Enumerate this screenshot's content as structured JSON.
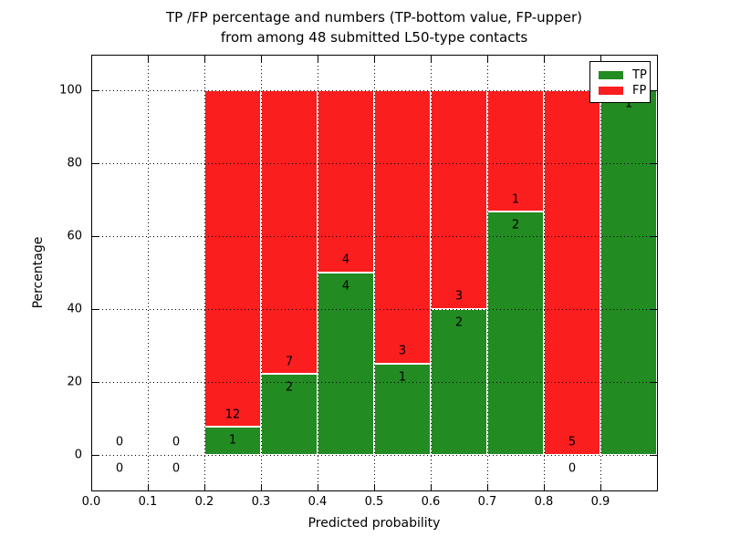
{
  "figure": {
    "title_line1": "TP /FP percentage and numbers (TP-bottom value, FP-upper)",
    "title_line2": "from among 48 submitted L50-type contacts",
    "background_color": "#ffffff",
    "text_color": "#000000"
  },
  "chart_data": {
    "type": "bar",
    "stacked": true,
    "title": "TP /FP percentage and numbers (TP-bottom value, FP-upper) from among 48 submitted L50-type contacts",
    "xlabel": "Predicted probability",
    "ylabel": "Percentage",
    "total_contacts": 48,
    "xlim": [
      0.0,
      1.0
    ],
    "ylim": [
      -9.75,
      109.75
    ],
    "grid": "dotted",
    "grid_on": true,
    "legend_position": "upper right",
    "legend": [
      {
        "label": "TP",
        "color": "#228b22"
      },
      {
        "label": "FP",
        "color": "#fa1e1e"
      }
    ],
    "colors": {
      "tp": "#228b22",
      "fp": "#fa1e1e",
      "bar_edge": "#ffffff",
      "axis": "#000000"
    },
    "yticks": [
      0,
      20,
      40,
      60,
      80,
      100
    ],
    "ytick_labels": [
      "0",
      "20",
      "40",
      "60",
      "80",
      "100"
    ],
    "xticks": [
      0.0,
      0.1,
      0.2,
      0.3,
      0.4,
      0.5,
      0.6,
      0.7,
      0.8,
      0.9
    ],
    "xtick_labels": [
      "0.0",
      "0.1",
      "0.2",
      "0.3",
      "0.4",
      "0.5",
      "0.6",
      "0.7",
      "0.8",
      "0.9"
    ],
    "xgrid_lines": [
      0.1,
      0.2,
      0.3,
      0.4,
      0.5,
      0.6,
      0.7,
      0.8,
      0.9
    ],
    "bins": [
      {
        "x0": 0.0,
        "x1": 0.1,
        "tp": 0,
        "fp": 0,
        "tp_pct": 0,
        "has_bar": false,
        "tp_label": "0",
        "fp_label": "0"
      },
      {
        "x0": 0.1,
        "x1": 0.2,
        "tp": 0,
        "fp": 0,
        "tp_pct": 0,
        "has_bar": false,
        "tp_label": "0",
        "fp_label": "0"
      },
      {
        "x0": 0.2,
        "x1": 0.3,
        "tp": 1,
        "fp": 12,
        "tp_pct": 7.69,
        "has_bar": true,
        "tp_label": "1",
        "fp_label": "12"
      },
      {
        "x0": 0.3,
        "x1": 0.4,
        "tp": 2,
        "fp": 7,
        "tp_pct": 22.22,
        "has_bar": true,
        "tp_label": "2",
        "fp_label": "7"
      },
      {
        "x0": 0.4,
        "x1": 0.5,
        "tp": 4,
        "fp": 4,
        "tp_pct": 50,
        "has_bar": true,
        "tp_label": "4",
        "fp_label": "4"
      },
      {
        "x0": 0.5,
        "x1": 0.6,
        "tp": 1,
        "fp": 3,
        "tp_pct": 25,
        "has_bar": true,
        "tp_label": "1",
        "fp_label": "3"
      },
      {
        "x0": 0.6,
        "x1": 0.7,
        "tp": 2,
        "fp": 3,
        "tp_pct": 40,
        "has_bar": true,
        "tp_label": "2",
        "fp_label": "3"
      },
      {
        "x0": 0.7,
        "x1": 0.8,
        "tp": 2,
        "fp": 1,
        "tp_pct": 66.67,
        "has_bar": true,
        "tp_label": "2",
        "fp_label": "1"
      },
      {
        "x0": 0.8,
        "x1": 0.9,
        "tp": 0,
        "fp": 5,
        "tp_pct": 0,
        "has_bar": true,
        "tp_label": "0",
        "fp_label": "5"
      },
      {
        "x0": 0.9,
        "x1": 1.0,
        "tp": 1,
        "fp": 0,
        "tp_pct": 100,
        "has_bar": true,
        "tp_label": "1",
        "fp_label": "0"
      }
    ]
  }
}
